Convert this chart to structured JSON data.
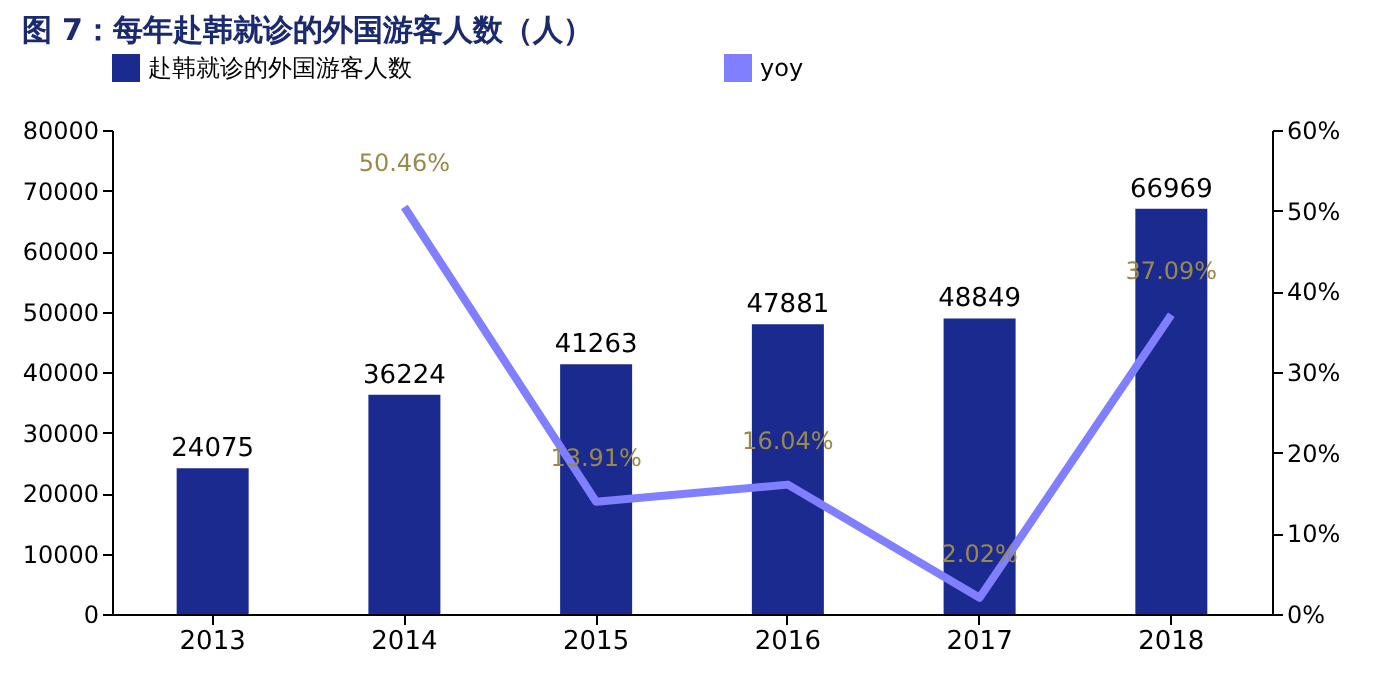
{
  "chart_data": {
    "type": "bar",
    "title": "图 7：每年赴韩就诊的外国游客人数（人）",
    "categories": [
      "2013",
      "2014",
      "2015",
      "2016",
      "2017",
      "2018"
    ],
    "series": [
      {
        "name": "赴韩就诊的外国游客人数",
        "color": "#1b2a8f",
        "values": [
          24075,
          36224,
          41263,
          47881,
          48849,
          66969
        ]
      },
      {
        "name": "yoy",
        "type": "line",
        "axis": "y2",
        "color": "#7f7fff",
        "values": [
          null,
          50.46,
          13.91,
          16.04,
          2.02,
          37.09
        ],
        "value_labels": [
          null,
          "50.46%",
          "13.91%",
          "16.04%",
          "2.02%",
          "37.09%"
        ]
      }
    ],
    "data_labels": true,
    "ylim": [
      0,
      80000
    ],
    "yticks": [
      0,
      10000,
      20000,
      30000,
      40000,
      50000,
      60000,
      70000,
      80000
    ],
    "y2lim": [
      0,
      60
    ],
    "y2ticks": [
      {
        "value": 0,
        "label": "0%"
      },
      {
        "value": 10,
        "label": "10%"
      },
      {
        "value": 20,
        "label": "20%"
      },
      {
        "value": 30,
        "label": "30%"
      },
      {
        "value": 40,
        "label": "40%"
      },
      {
        "value": 50,
        "label": "50%"
      },
      {
        "value": 60,
        "label": "60%"
      }
    ],
    "grid": false,
    "legend": "top"
  }
}
